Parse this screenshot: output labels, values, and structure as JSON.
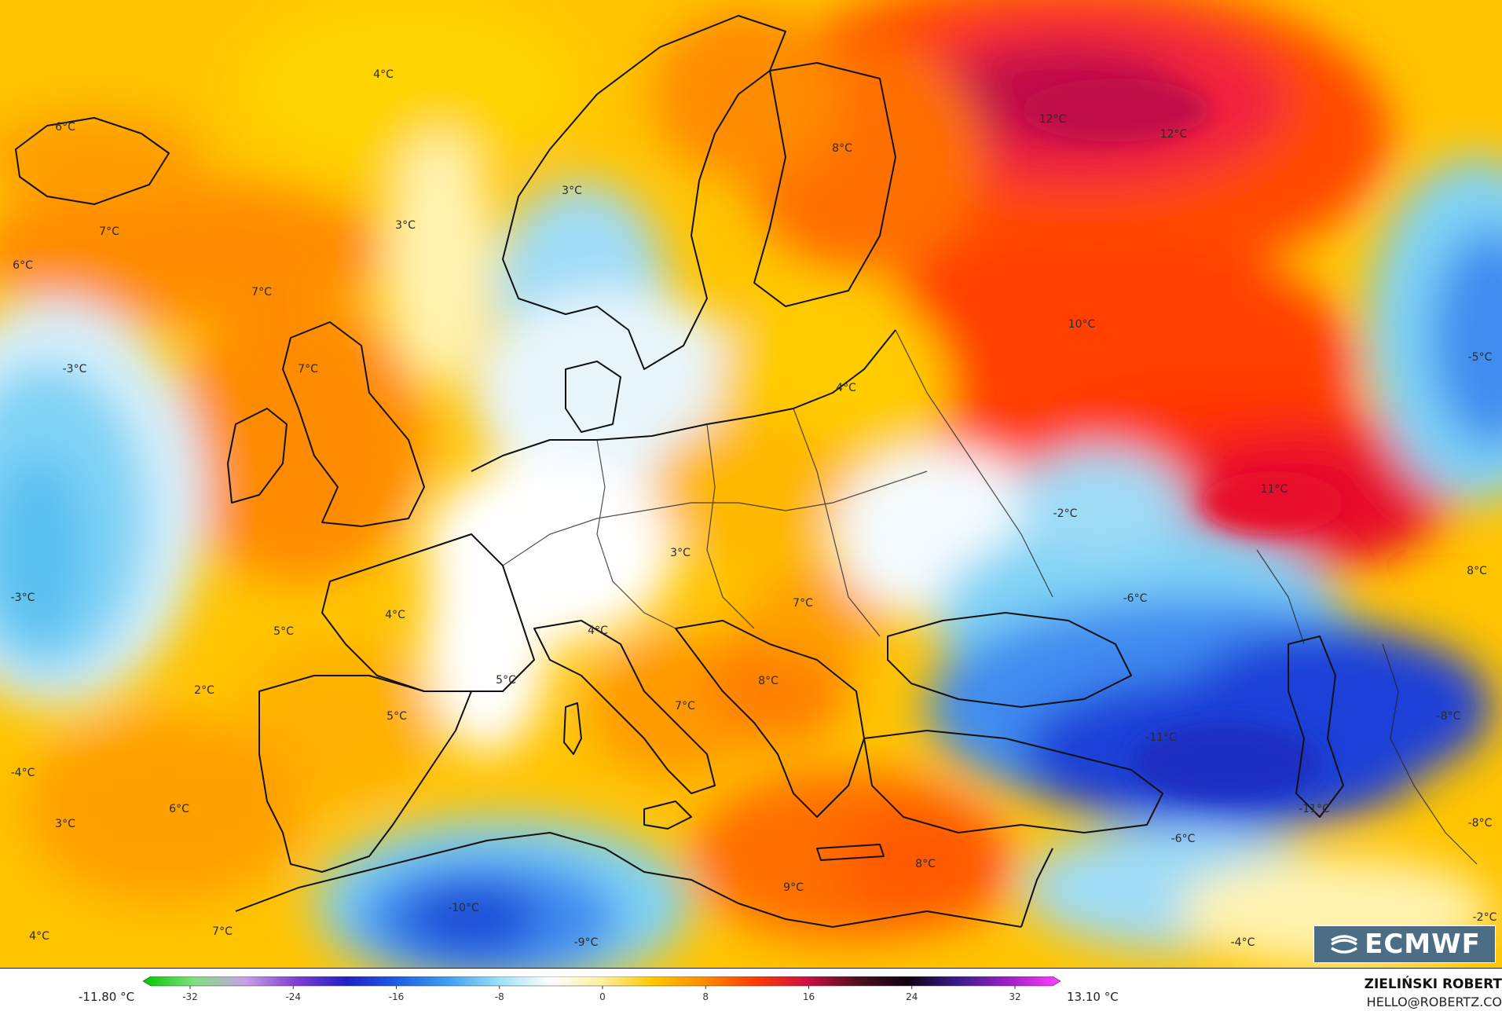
{
  "map": {
    "temperature_labels": [
      {
        "text": "4°C"
      },
      {
        "text": "6°C"
      },
      {
        "text": "7°C"
      },
      {
        "text": "6°C"
      },
      {
        "text": "7°C"
      },
      {
        "text": "3°C"
      },
      {
        "text": "3°C"
      },
      {
        "text": "8°C"
      },
      {
        "text": "12°C"
      },
      {
        "text": "12°C"
      },
      {
        "text": "10°C"
      },
      {
        "text": "-3°C"
      },
      {
        "text": "7°C"
      },
      {
        "text": "4°C"
      },
      {
        "text": "-5°C"
      },
      {
        "text": "11°C"
      },
      {
        "text": "-2°C"
      },
      {
        "text": "3°C"
      },
      {
        "text": "-3°C"
      },
      {
        "text": "4°C"
      },
      {
        "text": "5°C"
      },
      {
        "text": "4°C"
      },
      {
        "text": "7°C"
      },
      {
        "text": "-6°C"
      },
      {
        "text": "8°C"
      },
      {
        "text": "2°C"
      },
      {
        "text": "5°C"
      },
      {
        "text": "5°C"
      },
      {
        "text": "8°C"
      },
      {
        "text": "7°C"
      },
      {
        "text": "-4°C"
      },
      {
        "text": "-11°C"
      },
      {
        "text": "-8°C"
      },
      {
        "text": "-11°C"
      },
      {
        "text": "3°C"
      },
      {
        "text": "6°C"
      },
      {
        "text": "-8°C"
      },
      {
        "text": "-6°C"
      },
      {
        "text": "8°C"
      },
      {
        "text": "9°C"
      },
      {
        "text": "-10°C"
      },
      {
        "text": "4°C"
      },
      {
        "text": "7°C"
      },
      {
        "text": "-9°C"
      },
      {
        "text": "-4°C"
      },
      {
        "text": "-2°C"
      }
    ],
    "colors": {
      "deep_blue": "#1f3fd8",
      "blue": "#3f8cf0",
      "light_blue": "#7fd3f5",
      "pale_blue": "#d8f1fb",
      "white": "#ffffff",
      "pale_yellow": "#fff3b0",
      "yellow": "#ffd200",
      "orange_yellow": "#ffb400",
      "orange": "#ff8c00",
      "red_orange": "#ff4a00",
      "red": "#f0203c",
      "dark_red": "#c0104a"
    }
  },
  "logo": {
    "text": "ECMWF",
    "icon": "ecmwf-logo-icon"
  },
  "legend": {
    "min_label": "-11.80 °C",
    "max_label": "13.10 °C",
    "ticks": [
      "-32",
      "-24",
      "-16",
      "-8",
      "0",
      "8",
      "16",
      "24",
      "32"
    ],
    "color_stops": [
      "#00c800",
      "#7fe07f",
      "#c8a0e6",
      "#7f3fd0",
      "#2020c8",
      "#1f5fe6",
      "#3fa0f0",
      "#9fe0f8",
      "#ffffff",
      "#fff0a0",
      "#ffc800",
      "#ff8c00",
      "#ff3c00",
      "#d01040",
      "#501020",
      "#100010",
      "#3c1c8c",
      "#a020c8",
      "#ff40ff"
    ]
  },
  "author": {
    "name": "ZIELIŃSKI ROBERT",
    "email": "HELLO@ROBERTZ.CO"
  }
}
